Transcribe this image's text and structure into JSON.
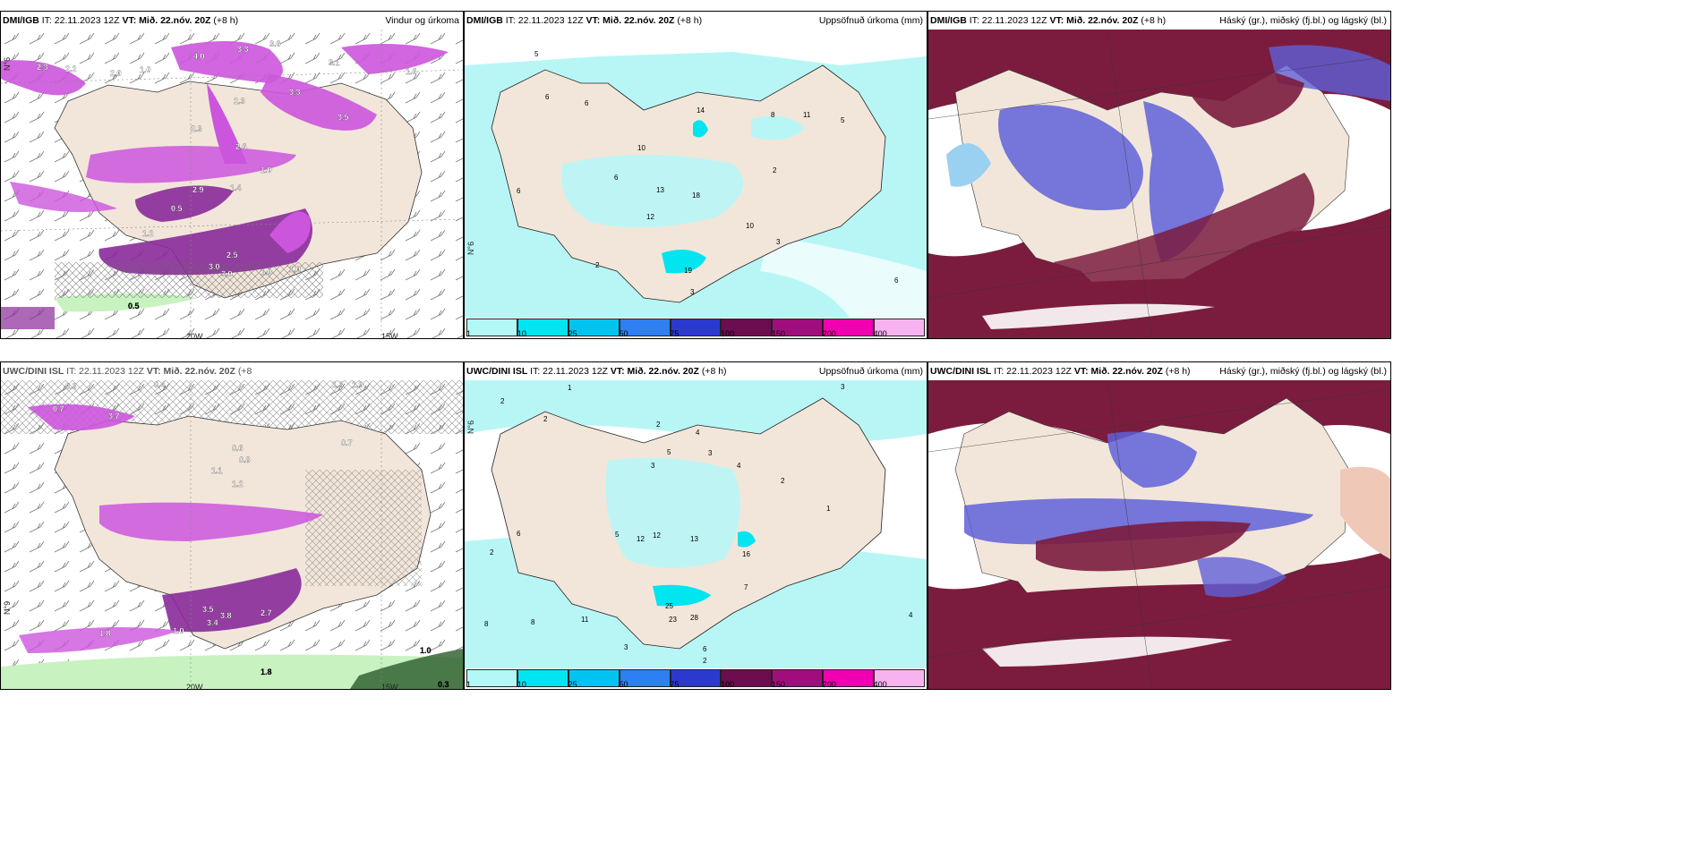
{
  "panels": [
    {
      "id": "p1",
      "source": "DMI/IGB",
      "it": "IT: 22.11.2023 12Z",
      "vt": "VT: Mið. 22.nóv. 20Z",
      "lead": "(+8 h)",
      "title": "Vindur og úrkoma",
      "lon_labels": [
        "20W",
        "15W"
      ],
      "lat_label": "N°6"
    },
    {
      "id": "p2",
      "source": "DMI/IGB",
      "it": "IT: 22.11.2023 12Z",
      "vt": "VT: Mið. 22.nóv. 20Z",
      "lead": "(+8 h)",
      "title": "Uppsöfnuð úrkoma (mm)",
      "lat_label": "N°6"
    },
    {
      "id": "p3",
      "source": "DMI/IGB",
      "it": "IT: 22.11.2023 12Z",
      "vt": "VT: Mið. 22.nóv. 20Z",
      "lead": "(+8 h)",
      "title": "Háský (gr.), miðský (fj.bl.) og lágský (bl.)"
    },
    {
      "id": "p4",
      "source": "UWC/DINI ISL",
      "it": "IT: 22.11.2023 12Z",
      "vt": "VT: Mið. 22.nóv. 20Z",
      "lead": "(+8",
      "title": "",
      "lon_labels": [
        "20W",
        "15W"
      ],
      "lat_label": "N°9"
    },
    {
      "id": "p5",
      "source": "UWC/DINI ISL",
      "it": "IT: 22.11.2023 12Z",
      "vt": "VT: Mið. 22.nóv. 20Z",
      "lead": "(+8 h)",
      "title": "Uppsöfnuð úrkoma (mm)",
      "lat_label": "N°6"
    },
    {
      "id": "p6",
      "source": "UWC/DINI ISL",
      "it": "IT: 22.11.2023 12Z",
      "vt": "VT: Mið. 22.nóv. 20Z",
      "lead": "(+8 h)",
      "title": "Háský (gr.), miðský (fj.bl.) og lágský (bl.)"
    }
  ],
  "precip_legend": {
    "labels": [
      "1",
      "10",
      "25",
      "50",
      "75",
      "100",
      "150",
      "200",
      "400"
    ],
    "colors": [
      "#b3f7f7",
      "#00e5ef",
      "#00c4f0",
      "#2e7ff0",
      "#2c39cf",
      "#6b0d4f",
      "#a00e7e",
      "#f000b0",
      "#f7b3f0"
    ]
  },
  "p1_values": [
    "2.3",
    "2.2",
    "2.0",
    "1.0",
    "4.0",
    "3.3",
    "3.6",
    "3.1",
    "1.6",
    "2.3",
    "3.3",
    "3.5",
    "2.6",
    "2.3",
    "1.0",
    "2.9",
    "1.4",
    "0.5",
    "1.2",
    "2.5",
    "3.0",
    "3.0",
    "1.0",
    "1.0",
    "0.5"
  ],
  "p2_values": [
    "5",
    "6",
    "6",
    "14",
    "8",
    "11",
    "5",
    "10",
    "6",
    "13",
    "18",
    "2",
    "12",
    "10",
    "2",
    "19",
    "3",
    "6",
    "6",
    "3"
  ],
  "p4_values": [
    "0.3",
    "0.4",
    "0.7",
    "3.7",
    "1.3",
    "1.9",
    "0.6",
    "0.8",
    "0.7",
    "1.1",
    "1.2",
    "3.5",
    "3.8",
    "3.4",
    "2.7",
    "1.0",
    "1.8",
    "1.0",
    "1.8",
    "0.3"
  ],
  "p5_values": [
    "1",
    "2",
    "2",
    "3",
    "2",
    "4",
    "5",
    "3",
    "3",
    "4",
    "2",
    "1",
    "6",
    "5",
    "12",
    "13",
    "12",
    "11",
    "16",
    "7",
    "25",
    "23",
    "28",
    "3",
    "6",
    "4",
    "8",
    "8",
    "2",
    "2"
  ],
  "colors": {
    "land": "#f2e6da",
    "precip_mag": "#cc55dd",
    "precip_dark": "#8a2a9a",
    "precip_green": "#c8f2c0",
    "cloud_high": "#7b1c3e",
    "cloud_mid": "#6060d8",
    "cloud_low": "#9ad0f0",
    "accum_light": "#b8f6f6"
  }
}
